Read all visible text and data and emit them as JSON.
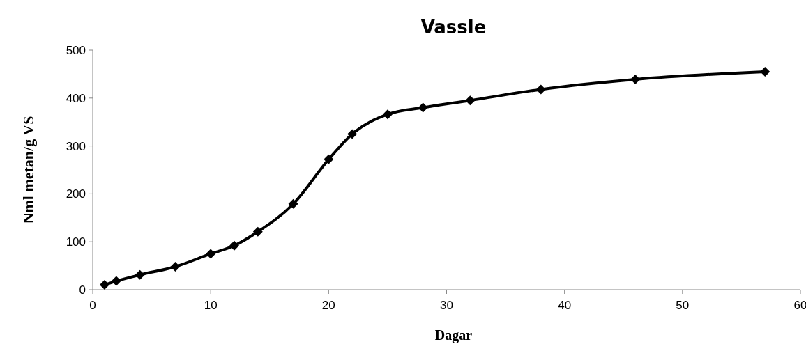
{
  "chart_data": {
    "type": "line",
    "title": "Vassle",
    "xlabel": "Dagar",
    "ylabel": "Nml metan/g VS",
    "x": [
      1,
      2,
      4,
      7,
      10,
      12,
      14,
      17,
      20,
      22,
      25,
      28,
      32,
      38,
      46,
      57
    ],
    "series": [
      {
        "color": "#000000",
        "values": [
          10,
          18,
          31,
          48,
          75,
          92,
          121,
          179,
          272,
          325,
          366,
          380,
          395,
          418,
          439,
          455
        ]
      }
    ],
    "xlim": [
      0,
      60
    ],
    "xticks": [
      0,
      10,
      20,
      30,
      40,
      50,
      60
    ],
    "ylim": [
      0,
      500
    ],
    "yticks": [
      0,
      100,
      200,
      300,
      400,
      500
    ],
    "marker": "diamond",
    "line_style": "solid",
    "grid": false
  }
}
